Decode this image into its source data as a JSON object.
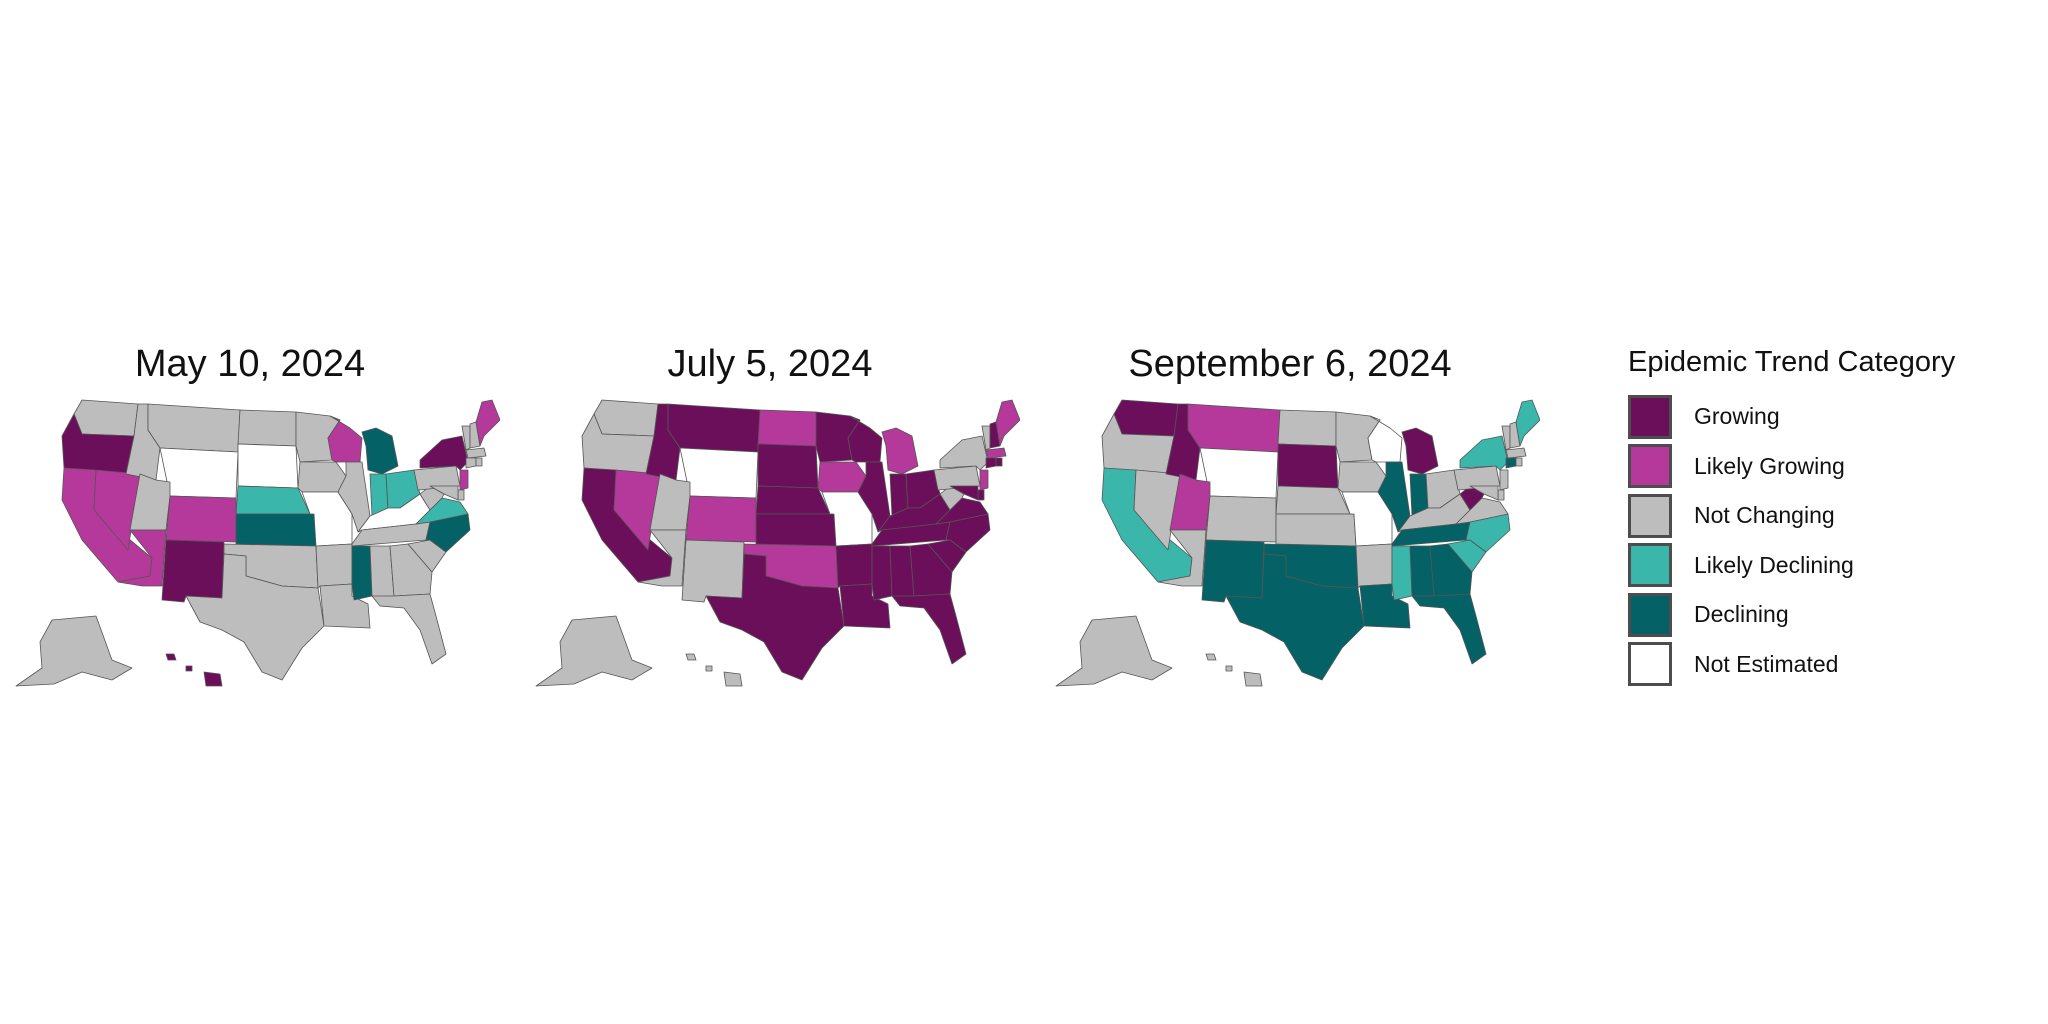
{
  "legend": {
    "title": "Epidemic Trend Category",
    "items": [
      {
        "label": "Growing",
        "color": "#6b0f5a"
      },
      {
        "label": "Likely Growing",
        "color": "#b5399b"
      },
      {
        "label": "Not Changing",
        "color": "#bdbdbd"
      },
      {
        "label": "Likely Declining",
        "color": "#3bb6ab"
      },
      {
        "label": "Declining",
        "color": "#046266"
      },
      {
        "label": "Not Estimated",
        "color": "#ffffff"
      }
    ]
  },
  "maps": [
    {
      "title": "May 10, 2024",
      "default": "Not Changing",
      "states": {
        "Growing": [
          "OR",
          "NM",
          "NY",
          "HI"
        ],
        "Likely Growing": [
          "CA",
          "NV",
          "AZ",
          "CO",
          "WI",
          "ME",
          "NJ"
        ],
        "Likely Declining": [
          "NE",
          "IN",
          "OH",
          "VA"
        ],
        "Declining": [
          "KS",
          "MI",
          "MS",
          "NC"
        ],
        "Not Estimated": [
          "WY",
          "SD",
          "MO",
          "KY"
        ]
      }
    },
    {
      "title": "July 5, 2024",
      "default": "Growing",
      "states": {
        "Not Changing": [
          "WA",
          "OR",
          "UT",
          "AZ",
          "NM",
          "WV",
          "PA",
          "NY",
          "VT",
          "AK",
          "HI"
        ],
        "Likely Growing": [
          "NV",
          "CO",
          "ND",
          "IA",
          "OK",
          "MI",
          "ME",
          "MA",
          "NJ"
        ],
        "Not Estimated": [
          "WY",
          "MO"
        ]
      }
    },
    {
      "title": "September 6, 2024",
      "default": "Not Changing",
      "states": {
        "Growing": [
          "WA",
          "ID",
          "SD",
          "MI",
          "WV"
        ],
        "Likely Growing": [
          "MT",
          "UT"
        ],
        "Likely Declining": [
          "CA",
          "MS",
          "NC",
          "SC",
          "NY",
          "ME"
        ],
        "Declining": [
          "NM",
          "TX",
          "OK",
          "LA",
          "IL",
          "IN",
          "TN",
          "AL",
          "GA",
          "FL",
          "CT"
        ],
        "Not Estimated": [
          "WY",
          "WI",
          "MO"
        ]
      }
    }
  ]
}
